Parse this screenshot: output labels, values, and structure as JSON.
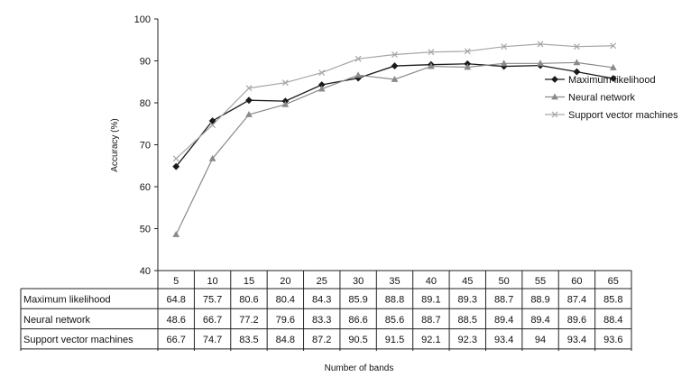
{
  "chart_data": {
    "type": "line",
    "xlabel": "Number of bands",
    "ylabel": "Accuracy (%)",
    "ylim": [
      40,
      100
    ],
    "yticks": [
      40,
      50,
      60,
      70,
      80,
      90,
      100
    ],
    "categories": [
      "5",
      "10",
      "15",
      "20",
      "25",
      "30",
      "35",
      "40",
      "45",
      "50",
      "55",
      "60",
      "65"
    ],
    "grid": false,
    "legend_position": "right",
    "series": [
      {
        "name": "Maximum likelihood",
        "marker": "diamond",
        "color": "#1a1a1a",
        "values": [
          64.8,
          75.7,
          80.6,
          80.4,
          84.3,
          85.9,
          88.8,
          89.1,
          89.3,
          88.7,
          88.9,
          87.4,
          85.8
        ]
      },
      {
        "name": "Neural network",
        "marker": "triangle",
        "color": "#8a8a8a",
        "values": [
          48.6,
          66.7,
          77.2,
          79.6,
          83.3,
          86.6,
          85.6,
          88.7,
          88.5,
          89.4,
          89.4,
          89.6,
          88.4
        ]
      },
      {
        "name": "Support vector machines",
        "marker": "x",
        "color": "#a6a6a6",
        "values": [
          66.7,
          74.7,
          83.5,
          84.8,
          87.2,
          90.5,
          91.5,
          92.1,
          92.3,
          93.4,
          94,
          93.4,
          93.6
        ]
      }
    ],
    "table": {
      "rows": [
        {
          "label": "Maximum likelihood",
          "cells": [
            "64.8",
            "75.7",
            "80.6",
            "80.4",
            "84.3",
            "85.9",
            "88.8",
            "89.1",
            "89.3",
            "88.7",
            "88.9",
            "87.4",
            "85.8"
          ]
        },
        {
          "label": "Neural network",
          "cells": [
            "48.6",
            "66.7",
            "77.2",
            "79.6",
            "83.3",
            "86.6",
            "85.6",
            "88.7",
            "88.5",
            "89.4",
            "89.4",
            "89.6",
            "88.4"
          ]
        },
        {
          "label": "Support vector machines",
          "cells": [
            "66.7",
            "74.7",
            "83.5",
            "84.8",
            "87.2",
            "90.5",
            "91.5",
            "92.1",
            "92.3",
            "93.4",
            "94",
            "93.4",
            "93.6"
          ]
        }
      ]
    }
  }
}
